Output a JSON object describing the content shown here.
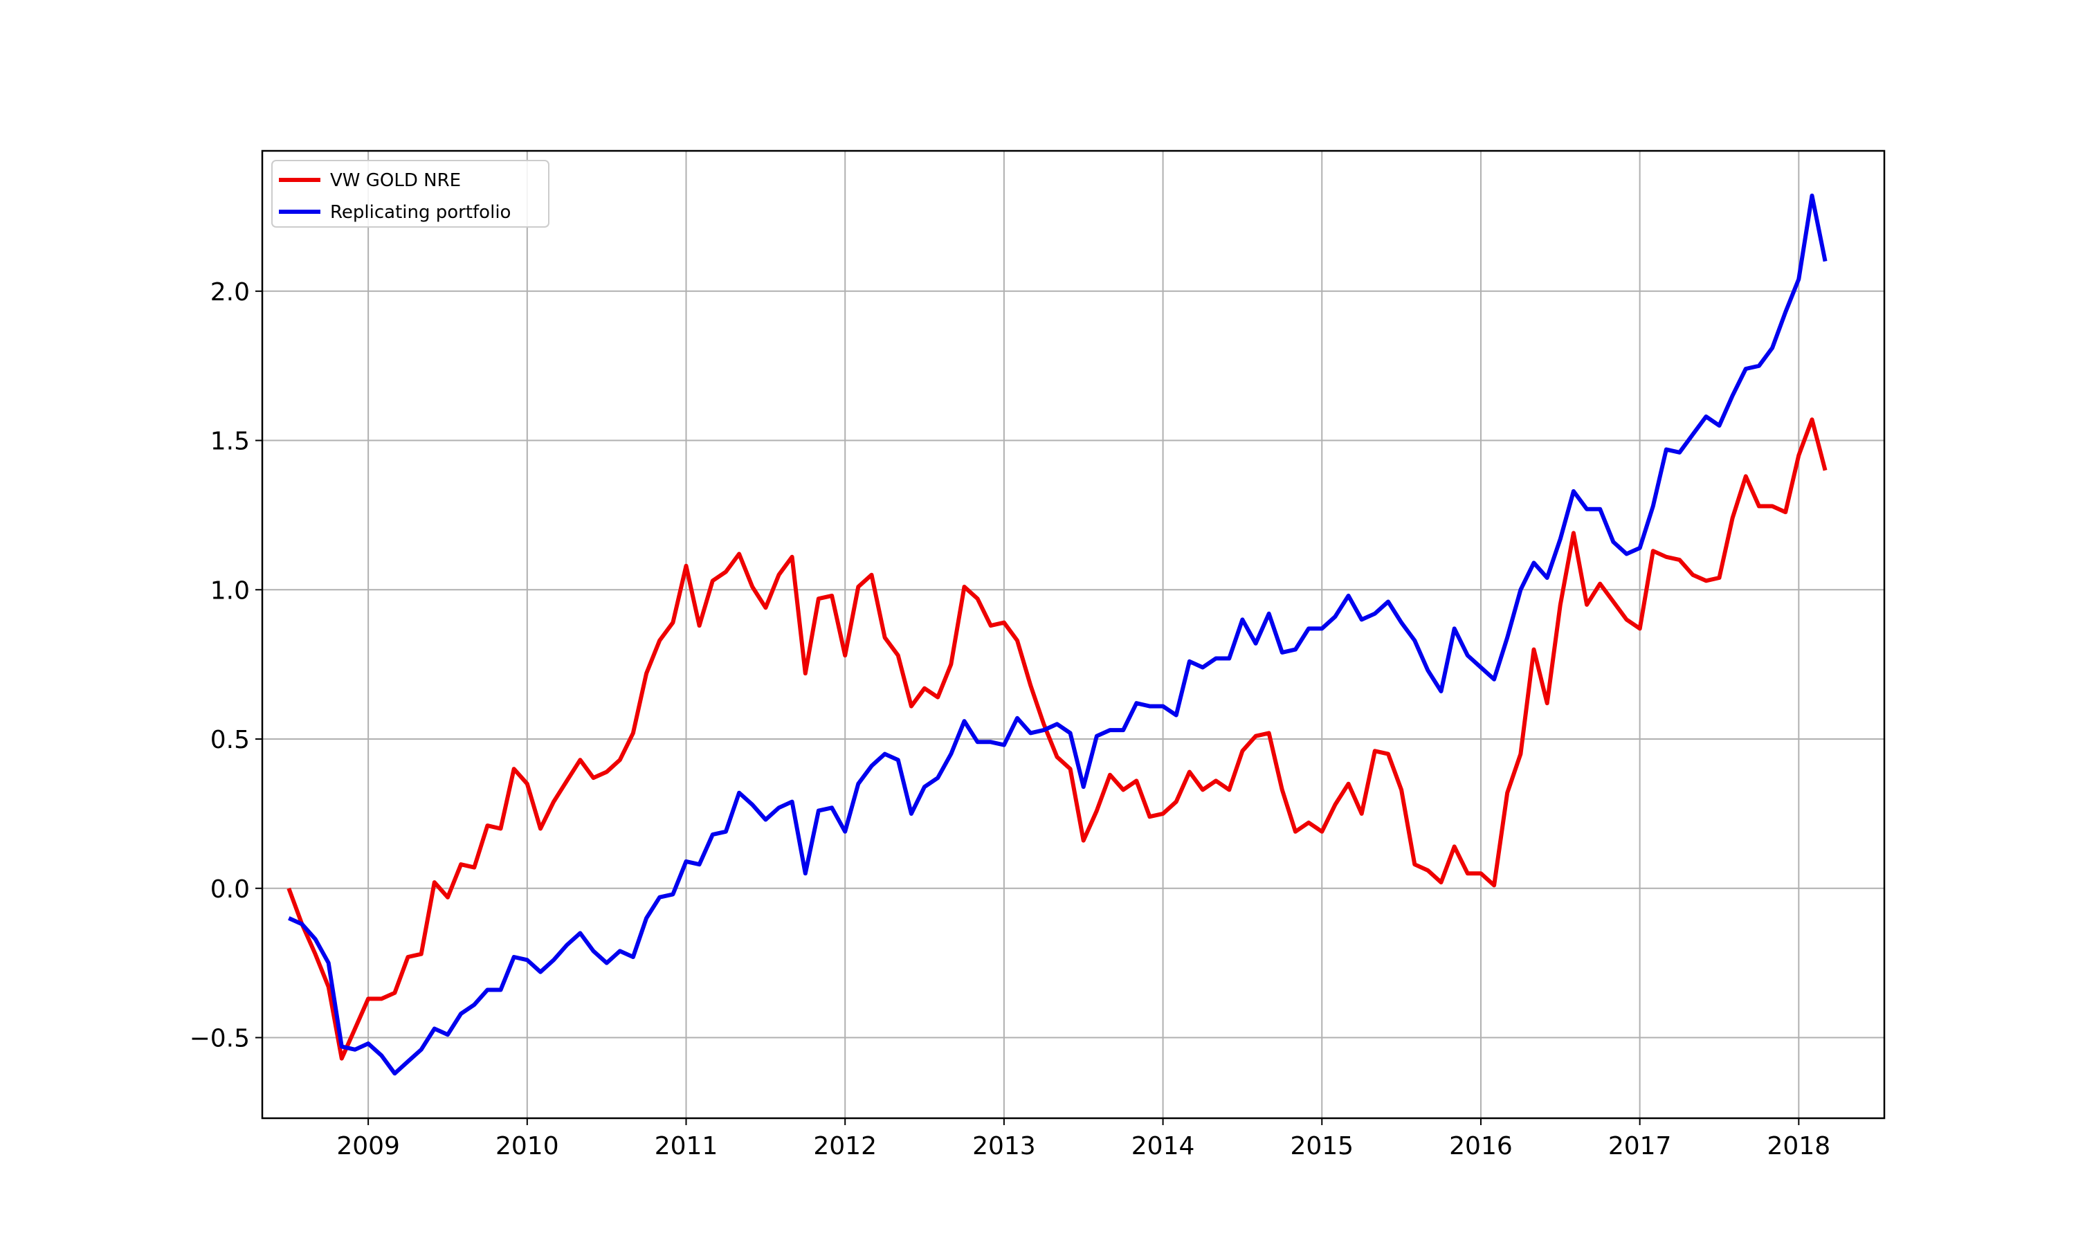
{
  "chart_data": {
    "type": "line",
    "title": "",
    "xlabel": "",
    "ylabel": "",
    "x_ticks": [
      "2009",
      "2010",
      "2011",
      "2012",
      "2013",
      "2014",
      "2015",
      "2016",
      "2017",
      "2018"
    ],
    "y_ticks": [
      "−0.5",
      "0.0",
      "0.5",
      "1.0",
      "1.5",
      "2.0"
    ],
    "xlim": [
      "2008-05-01",
      "2018-07-15"
    ],
    "ylim": [
      -0.77,
      2.47
    ],
    "grid": true,
    "legend": "upper-left",
    "x": [
      "2008-07",
      "2008-08",
      "2008-09",
      "2008-10",
      "2008-11",
      "2008-12",
      "2009-01",
      "2009-02",
      "2009-03",
      "2009-04",
      "2009-05",
      "2009-06",
      "2009-07",
      "2009-08",
      "2009-09",
      "2009-10",
      "2009-11",
      "2009-12",
      "2010-01",
      "2010-02",
      "2010-03",
      "2010-04",
      "2010-05",
      "2010-06",
      "2010-07",
      "2010-08",
      "2010-09",
      "2010-10",
      "2010-11",
      "2010-12",
      "2011-01",
      "2011-02",
      "2011-03",
      "2011-04",
      "2011-05",
      "2011-06",
      "2011-07",
      "2011-08",
      "2011-09",
      "2011-10",
      "2011-11",
      "2011-12",
      "2012-01",
      "2012-02",
      "2012-03",
      "2012-04",
      "2012-05",
      "2012-06",
      "2012-07",
      "2012-08",
      "2012-09",
      "2012-10",
      "2012-11",
      "2012-12",
      "2013-01",
      "2013-02",
      "2013-03",
      "2013-04",
      "2013-05",
      "2013-06",
      "2013-07",
      "2013-08",
      "2013-09",
      "2013-10",
      "2013-11",
      "2013-12",
      "2014-01",
      "2014-02",
      "2014-03",
      "2014-04",
      "2014-05",
      "2014-06",
      "2014-07",
      "2014-08",
      "2014-09",
      "2014-10",
      "2014-11",
      "2014-12",
      "2015-01",
      "2015-02",
      "2015-03",
      "2015-04",
      "2015-05",
      "2015-06",
      "2015-07",
      "2015-08",
      "2015-09",
      "2015-10",
      "2015-11",
      "2015-12",
      "2016-01",
      "2016-02",
      "2016-03",
      "2016-04",
      "2016-05",
      "2016-06",
      "2016-07",
      "2016-08",
      "2016-09",
      "2016-10",
      "2016-11",
      "2016-12",
      "2017-01",
      "2017-02",
      "2017-03",
      "2017-04",
      "2017-05",
      "2017-06",
      "2017-07",
      "2017-08",
      "2017-09",
      "2017-10",
      "2017-11",
      "2017-12",
      "2018-01",
      "2018-02",
      "2018-03"
    ],
    "series": [
      {
        "name": "VW GOLD NRE",
        "color": "#ee0000",
        "values": [
          0.0,
          -0.12,
          -0.22,
          -0.33,
          -0.57,
          -0.47,
          -0.37,
          -0.37,
          -0.35,
          -0.23,
          -0.22,
          0.02,
          -0.03,
          0.08,
          0.07,
          0.21,
          0.2,
          0.4,
          0.35,
          0.2,
          0.29,
          0.36,
          0.43,
          0.37,
          0.39,
          0.43,
          0.52,
          0.72,
          0.83,
          0.89,
          1.08,
          0.88,
          1.03,
          1.06,
          1.12,
          1.01,
          0.94,
          1.05,
          1.11,
          0.72,
          0.97,
          0.98,
          0.78,
          1.01,
          1.05,
          0.84,
          0.78,
          0.61,
          0.67,
          0.64,
          0.75,
          1.01,
          0.97,
          0.88,
          0.89,
          0.83,
          0.68,
          0.55,
          0.44,
          0.4,
          0.16,
          0.26,
          0.38,
          0.33,
          0.36,
          0.24,
          0.25,
          0.29,
          0.39,
          0.33,
          0.36,
          0.33,
          0.46,
          0.51,
          0.52,
          0.33,
          0.19,
          0.22,
          0.19,
          0.28,
          0.35,
          0.25,
          0.46,
          0.45,
          0.33,
          0.08,
          0.06,
          0.02,
          0.14,
          0.05,
          0.05,
          0.01,
          0.32,
          0.45,
          0.8,
          0.62,
          0.95,
          1.19,
          0.95,
          1.02,
          0.96,
          0.9,
          0.87,
          1.13,
          1.11,
          1.1,
          1.05,
          1.03,
          1.04,
          1.24,
          1.38,
          1.28,
          1.28,
          1.26,
          1.45,
          1.57,
          1.4
        ]
      },
      {
        "name": "Replicating portfolio",
        "color": "#0000ee",
        "values": [
          -0.1,
          -0.12,
          -0.17,
          -0.25,
          -0.53,
          -0.54,
          -0.52,
          -0.56,
          -0.62,
          -0.58,
          -0.54,
          -0.47,
          -0.49,
          -0.42,
          -0.39,
          -0.34,
          -0.34,
          -0.23,
          -0.24,
          -0.28,
          -0.24,
          -0.19,
          -0.15,
          -0.21,
          -0.25,
          -0.21,
          -0.23,
          -0.1,
          -0.03,
          -0.02,
          0.09,
          0.08,
          0.18,
          0.19,
          0.32,
          0.28,
          0.23,
          0.27,
          0.29,
          0.05,
          0.26,
          0.27,
          0.19,
          0.35,
          0.41,
          0.45,
          0.43,
          0.25,
          0.34,
          0.37,
          0.45,
          0.56,
          0.49,
          0.49,
          0.48,
          0.57,
          0.52,
          0.53,
          0.55,
          0.52,
          0.34,
          0.51,
          0.53,
          0.53,
          0.62,
          0.61,
          0.61,
          0.58,
          0.76,
          0.74,
          0.77,
          0.77,
          0.9,
          0.82,
          0.92,
          0.79,
          0.8,
          0.87,
          0.87,
          0.91,
          0.98,
          0.9,
          0.92,
          0.96,
          0.89,
          0.83,
          0.73,
          0.66,
          0.87,
          0.78,
          0.74,
          0.7,
          0.84,
          1.0,
          1.09,
          1.04,
          1.17,
          1.33,
          1.27,
          1.27,
          1.16,
          1.12,
          1.14,
          1.28,
          1.47,
          1.46,
          1.52,
          1.58,
          1.55,
          1.65,
          1.74,
          1.75,
          1.81,
          1.93,
          2.04,
          2.32,
          2.1
        ]
      }
    ]
  }
}
